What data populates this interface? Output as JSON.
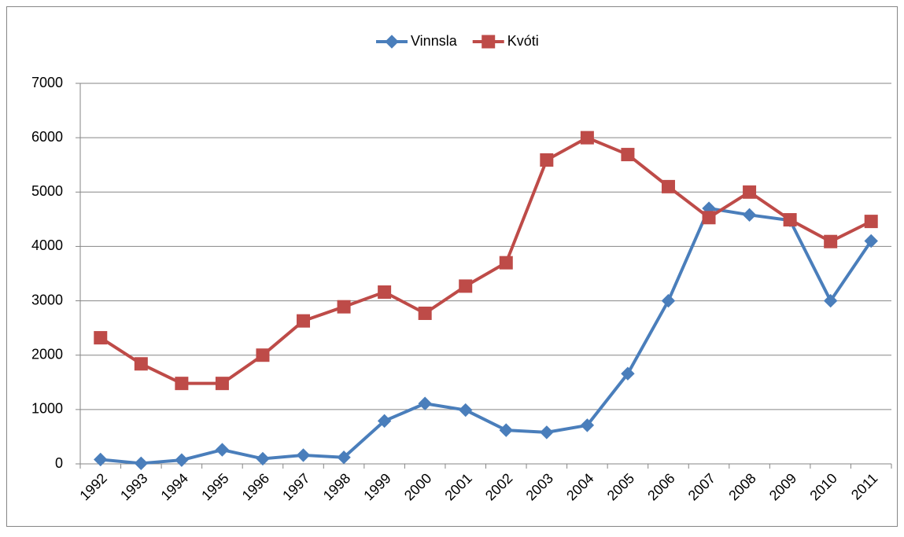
{
  "chart_data": {
    "type": "line",
    "categories": [
      "1992",
      "1993",
      "1994",
      "1995",
      "1996",
      "1997",
      "1998",
      "1999",
      "2000",
      "2001",
      "2002",
      "2003",
      "2004",
      "2005",
      "2006",
      "2007",
      "2008",
      "2009",
      "2010",
      "2011"
    ],
    "series": [
      {
        "name": "Vinnsla",
        "color": "#4a7ebb",
        "marker": "diamond",
        "values": [
          80,
          10,
          70,
          260,
          95,
          160,
          120,
          790,
          1110,
          990,
          620,
          580,
          710,
          1660,
          3000,
          4700,
          4580,
          4480,
          3000,
          4100
        ]
      },
      {
        "name": "Kvóti",
        "color": "#be4b48",
        "marker": "square",
        "values": [
          2320,
          1840,
          1480,
          1480,
          2000,
          2630,
          2890,
          3160,
          2770,
          3270,
          3700,
          5590,
          6000,
          5690,
          5100,
          4530,
          5000,
          4490,
          4090,
          4460
        ]
      }
    ],
    "ylim": [
      0,
      7000
    ],
    "yticks": [
      0,
      1000,
      2000,
      3000,
      4000,
      5000,
      6000,
      7000
    ],
    "grid": true,
    "legend": "top"
  }
}
